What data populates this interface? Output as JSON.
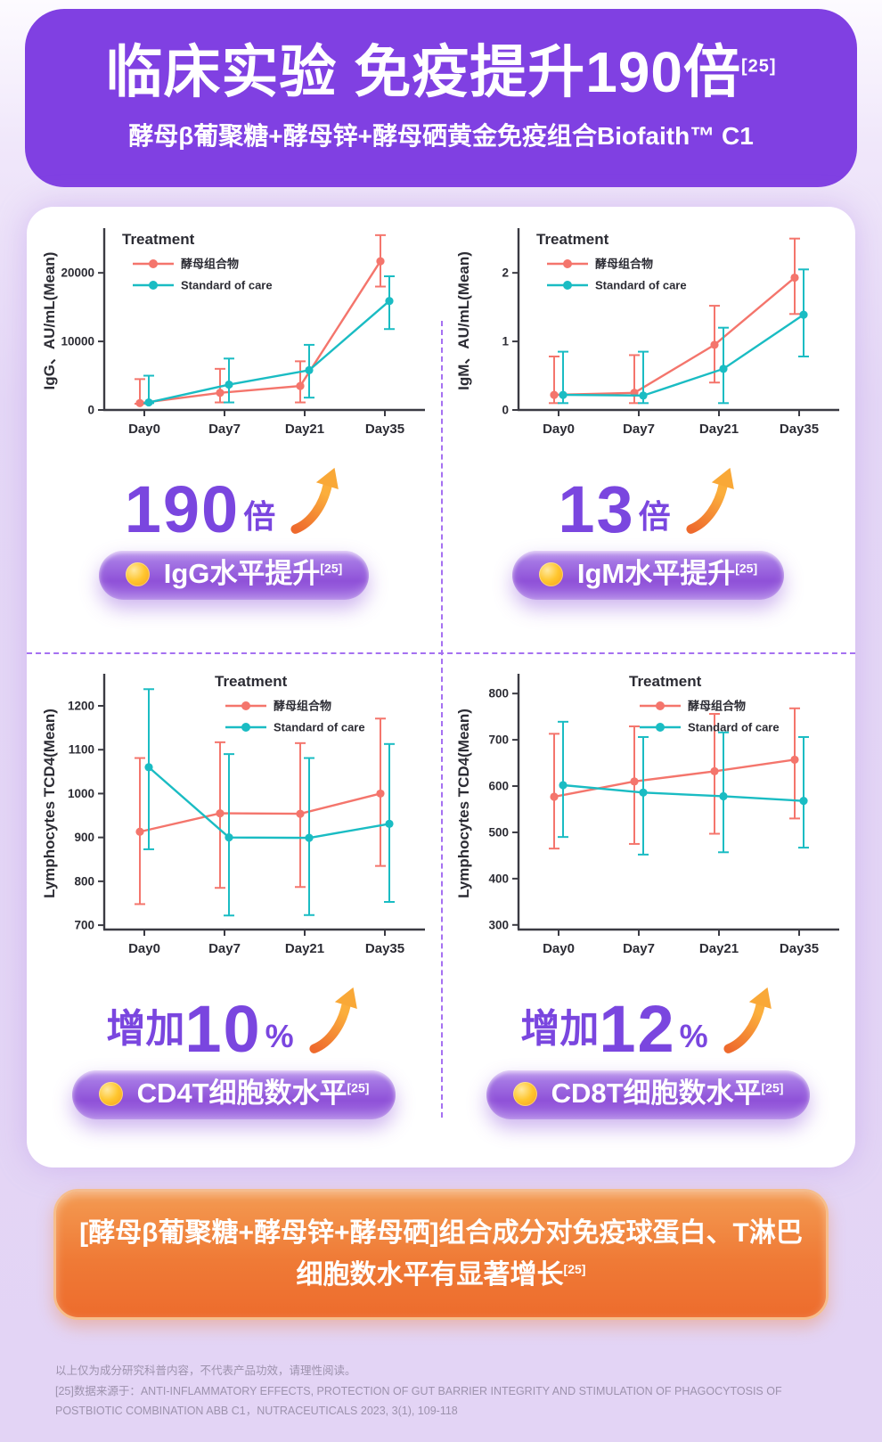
{
  "header": {
    "title": "临床实验 免疫提升190倍",
    "title_sup": "[25]",
    "subtitle": "酵母β葡聚糖+酵母锌+酵母硒黄金免疫组合Biofaith™ C1",
    "bg_color": "#8040E2"
  },
  "stats": [
    {
      "prefix": "",
      "number": "190",
      "unit": "倍"
    },
    {
      "prefix": "",
      "number": "13",
      "unit": "倍"
    },
    {
      "prefix": "增加",
      "number": "10",
      "unit": "%"
    },
    {
      "prefix": "增加",
      "number": "12",
      "unit": "%"
    }
  ],
  "pills": [
    {
      "label": "IgG水平提升",
      "sup": "[25]"
    },
    {
      "label": "IgM水平提升",
      "sup": "[25]"
    },
    {
      "label": "CD4T细胞数水平",
      "sup": "[25]"
    },
    {
      "label": "CD8T细胞数水平",
      "sup": "[25]"
    }
  ],
  "banner": {
    "text": "[酵母β葡聚糖+酵母锌+酵母硒]组合成分对免疫球蛋白、T淋巴细胞数水平有显著增长",
    "sup": "[25]"
  },
  "footer": {
    "line1": "以上仅为成分研究科普内容，不代表产品功效，请理性阅读。",
    "line2": "[25]数据来源于：ANTI-INFLAMMATORY EFFECTS, PROTECTION OF GUT BARRIER INTEGRITY AND STIMULATION OF PHAGOCYTOSIS OF POSTBIOTIC COMBINATION ABB C1，NUTRACEUTICALS 2023, 3(1), 109-118"
  },
  "colors": {
    "accent_purple": "#7A46DF",
    "dashed_divider": "#A571F1",
    "series_red": "#F4756C",
    "series_teal": "#1ABCC3",
    "arrow_orange": "#F9A837",
    "banner_orange": "#EF7A36"
  },
  "chart_data": [
    {
      "type": "line",
      "error_bars": true,
      "legend_title": "Treatment",
      "legend_pos": "top-left",
      "ylabel": "IgG、AU/mL(Mean)",
      "categories": [
        "Day0",
        "Day7",
        "Day21",
        "Day35"
      ],
      "ylim": [
        0,
        26000
      ],
      "yticks": [
        0,
        10000,
        20000
      ],
      "series": [
        {
          "name": "酵母组合物",
          "color": "#F4756C",
          "values": [
            1000,
            2500,
            3500,
            21700
          ],
          "err_low": [
            900,
            1100,
            1100,
            18000
          ],
          "err_high": [
            4500,
            6000,
            7100,
            25500
          ]
        },
        {
          "name": "Standard of care",
          "color": "#1ABCC3",
          "values": [
            1100,
            3700,
            5800,
            15900
          ],
          "err_low": [
            1000,
            1100,
            1800,
            11800
          ],
          "err_high": [
            5000,
            7500,
            9500,
            19500
          ]
        }
      ]
    },
    {
      "type": "line",
      "error_bars": true,
      "legend_title": "Treatment",
      "legend_pos": "top-left",
      "ylabel": "IgM、AU/mL(Mean)",
      "categories": [
        "Day0",
        "Day7",
        "Day21",
        "Day35"
      ],
      "ylim": [
        0,
        2.6
      ],
      "yticks": [
        0,
        1,
        2
      ],
      "series": [
        {
          "name": "酵母组合物",
          "color": "#F4756C",
          "values": [
            0.22,
            0.25,
            0.95,
            1.93
          ],
          "err_low": [
            0.1,
            0.1,
            0.4,
            1.4
          ],
          "err_high": [
            0.78,
            0.8,
            1.52,
            2.5
          ]
        },
        {
          "name": "Standard of care",
          "color": "#1ABCC3",
          "values": [
            0.22,
            0.21,
            0.6,
            1.39
          ],
          "err_low": [
            0.1,
            0.1,
            0.1,
            0.78
          ],
          "err_high": [
            0.85,
            0.85,
            1.2,
            2.05
          ]
        }
      ]
    },
    {
      "type": "line",
      "error_bars": true,
      "legend_title": "Treatment",
      "legend_pos": "top-right",
      "ylabel": "Lymphocytes TCD4(Mean)",
      "categories": [
        "Day0",
        "Day7",
        "Day21",
        "Day35"
      ],
      "ylim": [
        690,
        1265
      ],
      "yticks": [
        700,
        800,
        900,
        1000,
        1100,
        1200
      ],
      "series": [
        {
          "name": "酵母组合物",
          "color": "#F4756C",
          "values": [
            913,
            955,
            954,
            1000
          ],
          "err_low": [
            748,
            785,
            787,
            835
          ],
          "err_high": [
            1081,
            1117,
            1115,
            1171
          ]
        },
        {
          "name": "Standard of care",
          "color": "#1ABCC3",
          "values": [
            1060,
            900,
            899,
            931
          ],
          "err_low": [
            873,
            722,
            723,
            753
          ],
          "err_high": [
            1238,
            1090,
            1081,
            1113
          ]
        }
      ]
    },
    {
      "type": "line",
      "error_bars": true,
      "legend_title": "Treatment",
      "legend_pos": "top-right",
      "ylabel": "Lymphocytes TCD4(Mean)",
      "categories": [
        "Day0",
        "Day7",
        "Day21",
        "Day35"
      ],
      "ylim": [
        290,
        835
      ],
      "yticks": [
        300,
        400,
        500,
        600,
        700,
        800
      ],
      "series": [
        {
          "name": "酵母组合物",
          "color": "#F4756C",
          "values": [
            577,
            610,
            632,
            657
          ],
          "err_low": [
            465,
            475,
            497,
            530
          ],
          "err_high": [
            713,
            729,
            756,
            768
          ]
        },
        {
          "name": "Standard of care",
          "color": "#1ABCC3",
          "values": [
            602,
            586,
            578,
            568
          ],
          "err_low": [
            490,
            452,
            457,
            467
          ],
          "err_high": [
            739,
            706,
            716,
            706
          ]
        }
      ]
    }
  ]
}
